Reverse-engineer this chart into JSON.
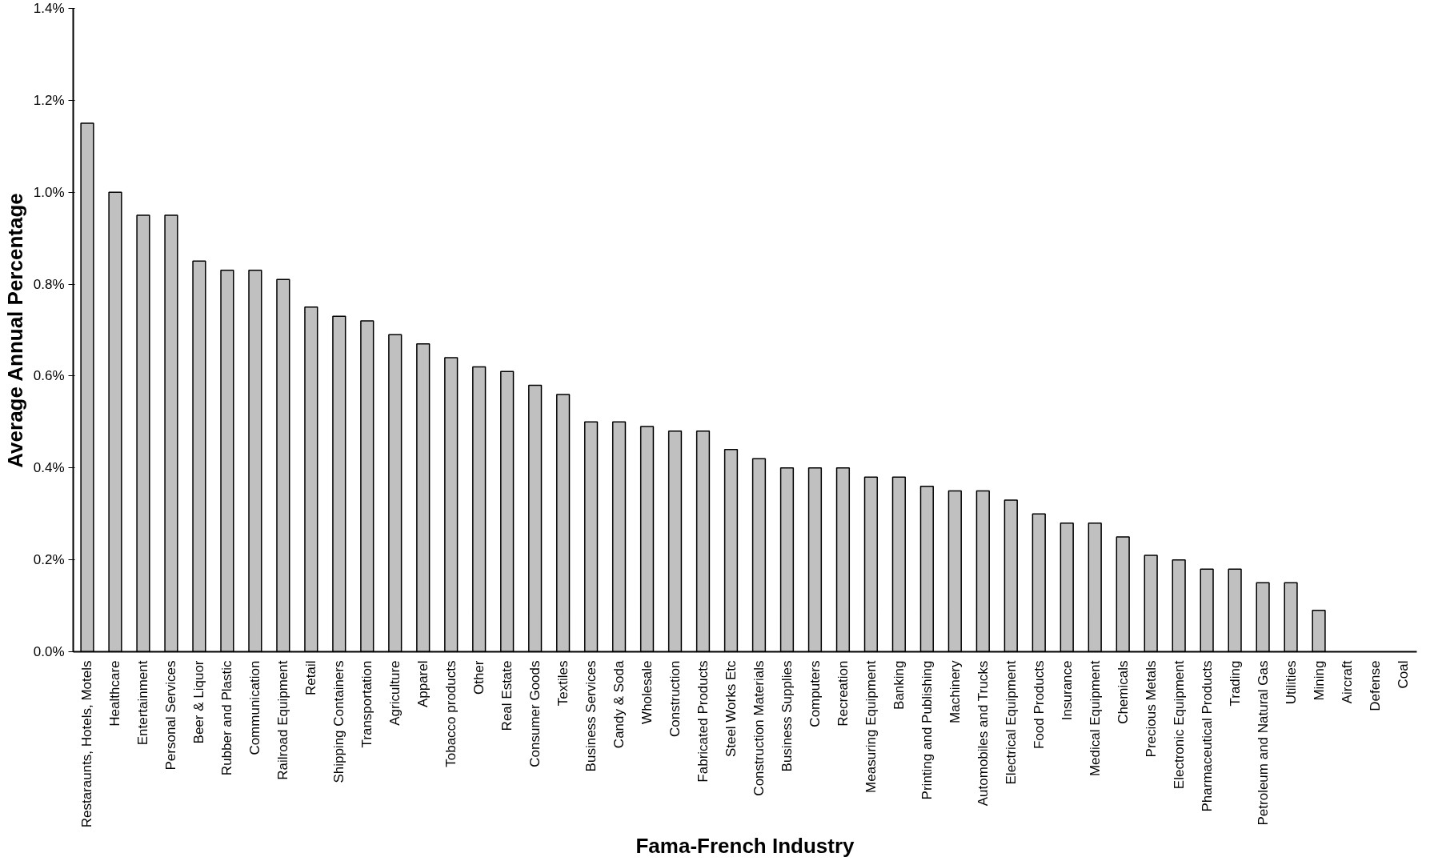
{
  "chart_data": {
    "type": "bar",
    "xlabel": "Fama-French Industry",
    "ylabel": "Average Annual Percentage",
    "categories": [
      "Restaraunts, Hotels, Motels",
      "Healthcare",
      "Entertainment",
      "Personal Services",
      "Beer & Liquor",
      "Rubber and Plastic",
      "Communication",
      "Railroad Equipment",
      "Retail",
      "Shipping Containers",
      "Transportation",
      "Agriculture",
      "Apparel",
      "Tobacco products",
      "Other",
      "Real Estate",
      "Consumer Goods",
      "Textiles",
      "Business Services",
      "Candy & Soda",
      "Wholesale",
      "Construction",
      "Fabricated Products",
      "Steel Works Etc",
      "Construction Materials",
      "Business Supplies",
      "Computers",
      "Recreation",
      "Measuring Equipment",
      "Banking",
      "Printing and Publishing",
      "Machinery",
      "Automobiles and Trucks",
      "Electrical Equipment",
      "Food Products",
      "Insurance",
      "Medical Equipment",
      "Chemicals",
      "Precious Metals",
      "Electronic Equipment",
      "Pharmaceutical Products",
      "Trading",
      "Petroleum and Natural Gas",
      "Utilities",
      "Mining",
      "Aircraft",
      "Defense",
      "Coal"
    ],
    "values": [
      1.15,
      1.0,
      0.95,
      0.95,
      0.85,
      0.83,
      0.83,
      0.81,
      0.75,
      0.73,
      0.72,
      0.69,
      0.67,
      0.64,
      0.62,
      0.61,
      0.58,
      0.56,
      0.5,
      0.5,
      0.49,
      0.48,
      0.48,
      0.44,
      0.42,
      0.4,
      0.4,
      0.4,
      0.38,
      0.38,
      0.36,
      0.35,
      0.35,
      0.33,
      0.3,
      0.28,
      0.28,
      0.25,
      0.21,
      0.2,
      0.18,
      0.18,
      0.15,
      0.15,
      0.09,
      0,
      0,
      0
    ],
    "color": "#c0c0c0",
    "ylim": [
      0,
      1.4
    ],
    "yticks": [
      {
        "value": 0,
        "label": "0.0%"
      },
      {
        "value": 0.2,
        "label": "0.2%"
      },
      {
        "value": 0.4,
        "label": "0.4%"
      },
      {
        "value": 0.6,
        "label": "0.6%"
      },
      {
        "value": 0.8,
        "label": "0.8%"
      },
      {
        "value": 1.0,
        "label": "1.0%"
      },
      {
        "value": 1.2,
        "label": "1.2%"
      },
      {
        "value": 1.4,
        "label": "1.4%"
      }
    ],
    "grid": false
  }
}
